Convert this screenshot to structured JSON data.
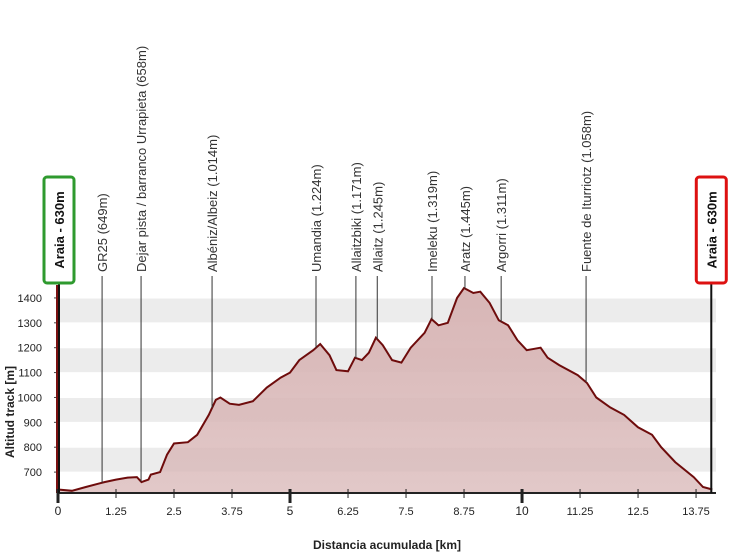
{
  "chart_data": {
    "type": "area",
    "x_label": "Distancia acumulada [km]",
    "y_label": "Altitud track [m]",
    "line_color": "#6e0c0c",
    "fill_color": "#d8b6b6",
    "axis_bar_color": "#7a1010",
    "grid": true,
    "xlim": [
      0,
      14.18
    ],
    "ylim": [
      616,
      1452
    ],
    "xticks": [
      0,
      1.25,
      2.5,
      3.75,
      5,
      6.25,
      7.5,
      8.75,
      10,
      11.25,
      12.5,
      13.75
    ],
    "yticks": [
      700,
      800,
      900,
      1000,
      1100,
      1200,
      1300,
      1400
    ],
    "x": [
      0,
      0.3,
      0.6,
      0.9,
      1.0,
      1.25,
      1.5,
      1.7,
      1.8,
      1.95,
      2.0,
      2.2,
      2.35,
      2.5,
      2.8,
      3.0,
      3.25,
      3.4,
      3.5,
      3.7,
      3.9,
      4.2,
      4.5,
      4.8,
      5.0,
      5.2,
      5.5,
      5.65,
      5.85,
      6.0,
      6.25,
      6.4,
      6.55,
      6.7,
      6.85,
      7.0,
      7.2,
      7.4,
      7.6,
      7.9,
      8.05,
      8.2,
      8.4,
      8.6,
      8.75,
      8.95,
      9.1,
      9.3,
      9.5,
      9.7,
      9.9,
      10.1,
      10.4,
      10.55,
      10.8,
      11.2,
      11.4,
      11.6,
      11.9,
      12.2,
      12.5,
      12.8,
      13.0,
      13.3,
      13.7,
      13.9,
      14.1
    ],
    "values": [
      630,
      625,
      640,
      655,
      660,
      670,
      678,
      680,
      660,
      670,
      690,
      700,
      770,
      815,
      820,
      850,
      930,
      990,
      1000,
      975,
      970,
      985,
      1040,
      1080,
      1100,
      1150,
      1190,
      1215,
      1170,
      1110,
      1105,
      1160,
      1150,
      1180,
      1240,
      1210,
      1150,
      1140,
      1200,
      1260,
      1315,
      1290,
      1300,
      1400,
      1440,
      1420,
      1425,
      1380,
      1310,
      1290,
      1230,
      1190,
      1200,
      1160,
      1130,
      1090,
      1058,
      1000,
      960,
      930,
      880,
      850,
      800,
      740,
      680,
      640,
      630
    ],
    "waypoints": [
      {
        "x": 0.95,
        "label": "GR25 (649m)"
      },
      {
        "x": 1.79,
        "label": "Dejar pista / barranco Urrapieta (658m)"
      },
      {
        "x": 3.32,
        "label": "Albéniz/Albeiz (1.014m)"
      },
      {
        "x": 5.56,
        "label": "Umandia (1.224m)"
      },
      {
        "x": 6.42,
        "label": "Allaitzbiki (1.171m)"
      },
      {
        "x": 6.88,
        "label": "Allaitz (1.245m)"
      },
      {
        "x": 8.06,
        "label": "Imeleku (1.319m)"
      },
      {
        "x": 8.77,
        "label": "Aratz (1.445m)"
      },
      {
        "x": 9.55,
        "label": "Argorri (1.311m)"
      },
      {
        "x": 11.38,
        "label": "Fuente de Iturriotz (1.058m)"
      }
    ],
    "start_marker": {
      "label": "Araia - 630m",
      "color": "#2e9a2e"
    },
    "end_marker": {
      "label": "Araia - 630m",
      "color": "#dd1111"
    }
  }
}
